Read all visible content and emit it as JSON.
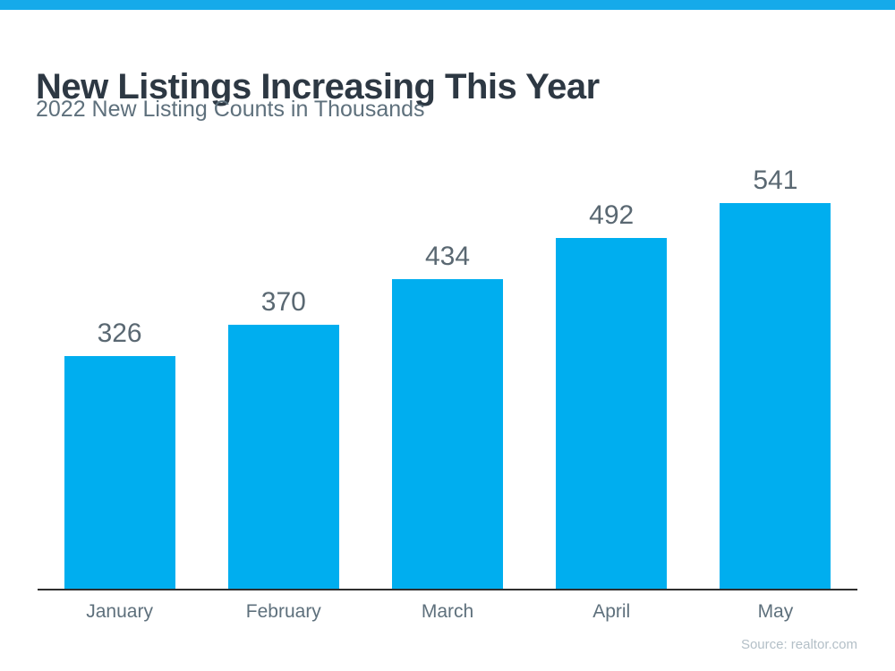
{
  "banner": {
    "color": "#15AAEA"
  },
  "header": {
    "title": "New Listings Increasing This Year",
    "subtitle": "2022 New Listing Counts in Thousands"
  },
  "chart_data": {
    "type": "bar",
    "categories": [
      "January",
      "February",
      "March",
      "April",
      "May"
    ],
    "values": [
      326,
      370,
      434,
      492,
      541
    ],
    "title": "New Listings Increasing This Year",
    "subtitle": "2022 New Listing Counts in Thousands",
    "xlabel": "",
    "ylabel": "",
    "ylim": [
      0,
      560
    ],
    "bar_color": "#00AEEF",
    "value_label_color": "#5A6872",
    "axis_line_color": "#2e2e2e",
    "value_labels_shown": true,
    "grid": false,
    "legend": false
  },
  "footer": {
    "source": "Source: realtor.com"
  }
}
